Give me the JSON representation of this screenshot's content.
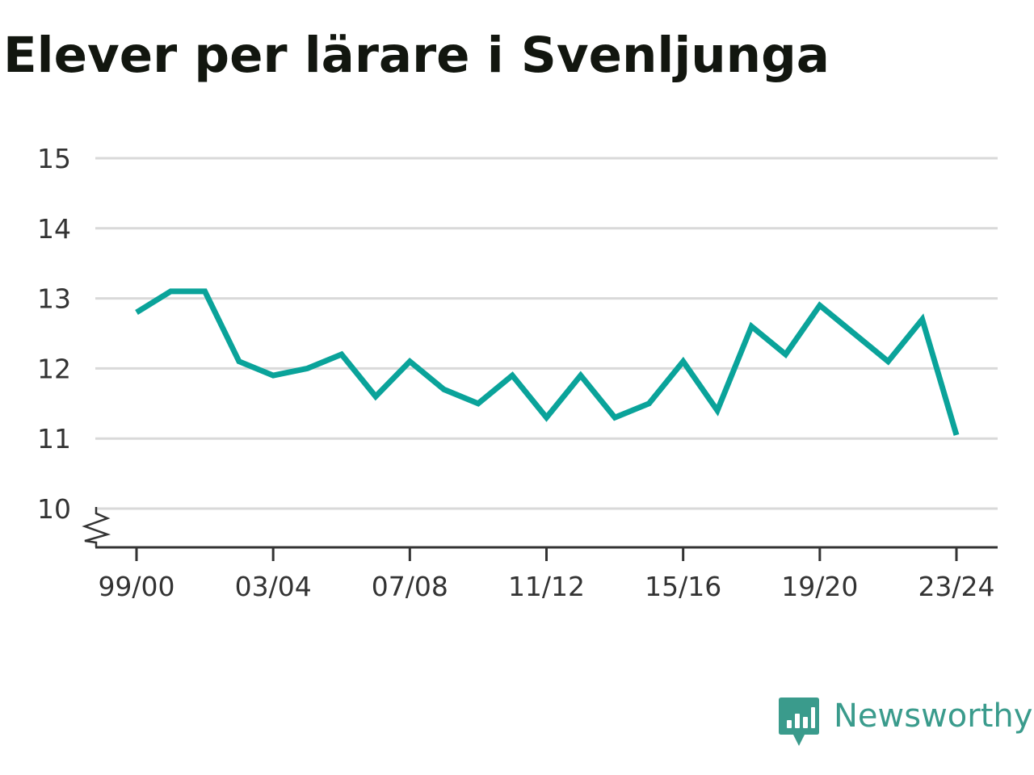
{
  "colors": {
    "line": "#0aa39a",
    "grid": "#d9d9d9",
    "axis": "#333333",
    "title": "#12160f",
    "brand": "#3a9b8c"
  },
  "brand": {
    "name": "Newsworthy",
    "logo_icon": "bar-chart-speech-bubble-icon"
  },
  "chart_data": {
    "type": "line",
    "title": "Elever per lärare i Svenljunga",
    "xlabel": "",
    "ylabel": "",
    "ylim": [
      10,
      15
    ],
    "yticks": [
      10,
      11,
      12,
      13,
      14,
      15
    ],
    "y_axis_break": true,
    "grid": true,
    "legend": "none",
    "x": [
      "99/00",
      "00/01",
      "01/02",
      "02/03",
      "03/04",
      "04/05",
      "05/06",
      "06/07",
      "07/08",
      "08/09",
      "09/10",
      "10/11",
      "11/12",
      "12/13",
      "13/14",
      "14/15",
      "15/16",
      "16/17",
      "17/18",
      "18/19",
      "19/20",
      "20/21",
      "21/22",
      "22/23",
      "23/24"
    ],
    "xticks": [
      "99/00",
      "03/04",
      "07/08",
      "11/12",
      "15/16",
      "19/20",
      "23/24"
    ],
    "series": [
      {
        "values": [
          12.8,
          13.1,
          13.1,
          12.1,
          11.9,
          12.0,
          12.2,
          11.6,
          12.1,
          11.7,
          11.5,
          11.9,
          11.3,
          11.9,
          11.3,
          11.5,
          12.1,
          11.4,
          12.6,
          12.2,
          12.9,
          12.5,
          12.1,
          12.7,
          11.05
        ]
      }
    ]
  }
}
